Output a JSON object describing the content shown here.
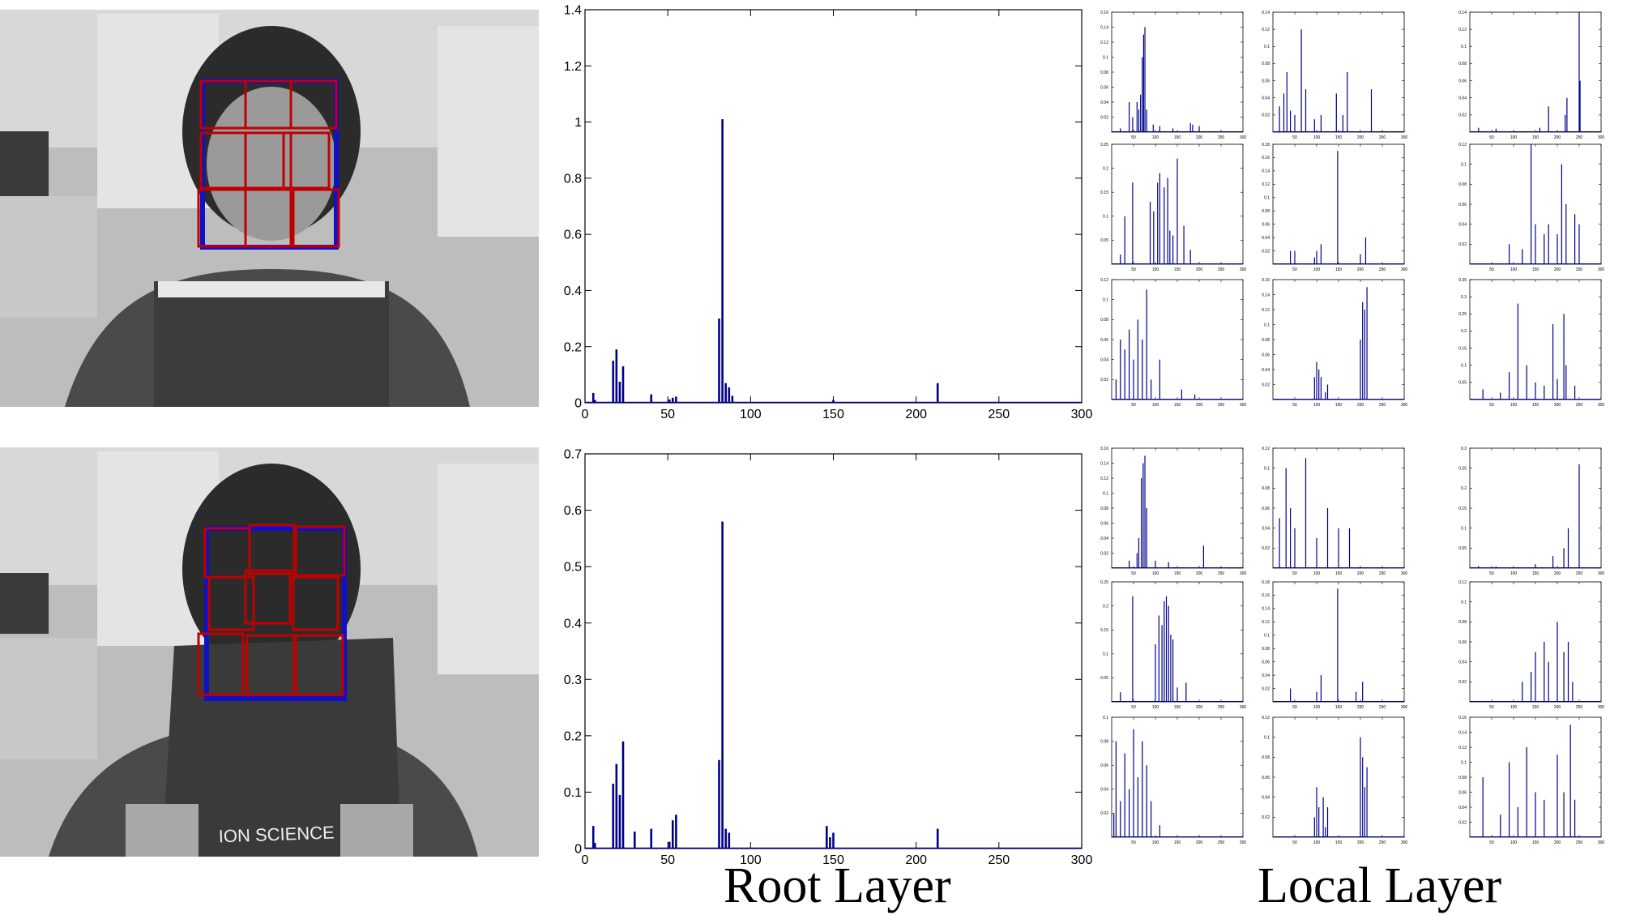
{
  "captions": {
    "root": "Root Layer",
    "local": "Local Layer"
  },
  "photos": [
    {
      "book_text": ""
    },
    {
      "book_text": "ION SCIENCE"
    }
  ],
  "colors": {
    "bar": "#00008b",
    "root_box": "#1010c8",
    "part_box": "#c00000"
  },
  "chart_data": [
    {
      "type": "bar",
      "xlim": [
        0,
        300
      ],
      "ylim": [
        0,
        1.4
      ],
      "xticks": [
        0,
        50,
        100,
        150,
        200,
        250,
        300
      ],
      "yticks": [
        0,
        0.2,
        0.4,
        0.6,
        0.8,
        1,
        1.2,
        1.4
      ],
      "xtick_labels": [
        "0",
        "50",
        "100",
        "150",
        "200",
        "250",
        "300"
      ],
      "ytick_labels": [
        "0",
        "0.2",
        "0.4",
        "0.6",
        "0.8",
        "1",
        "1.2",
        "1.4"
      ],
      "x": [
        5,
        6,
        17,
        19,
        21,
        23,
        40,
        51,
        53,
        55,
        81,
        83,
        85,
        87,
        89,
        150,
        213
      ],
      "values": [
        0.035,
        0.01,
        0.15,
        0.19,
        0.075,
        0.13,
        0.03,
        0.012,
        0.018,
        0.022,
        0.3,
        1.01,
        0.07,
        0.055,
        0.025,
        0.01,
        0.07
      ]
    },
    {
      "type": "bar",
      "xlim": [
        0,
        300
      ],
      "ylim": [
        0,
        0.7
      ],
      "xticks": [
        0,
        50,
        100,
        150,
        200,
        250,
        300
      ],
      "yticks": [
        0,
        0.1,
        0.2,
        0.3,
        0.4,
        0.5,
        0.6,
        0.7
      ],
      "xtick_labels": [
        "0",
        "50",
        "100",
        "150",
        "200",
        "250",
        "300"
      ],
      "ytick_labels": [
        "0",
        "0.1",
        "0.2",
        "0.3",
        "0.4",
        "0.5",
        "0.6",
        "0.7"
      ],
      "x": [
        5,
        6,
        17,
        19,
        21,
        23,
        30,
        40,
        51,
        53,
        55,
        81,
        83,
        85,
        87,
        146,
        148,
        150,
        213
      ],
      "values": [
        0.04,
        0.01,
        0.115,
        0.15,
        0.095,
        0.19,
        0.03,
        0.035,
        0.012,
        0.05,
        0.06,
        0.157,
        0.58,
        0.035,
        0.028,
        0.04,
        0.02,
        0.028,
        0.035
      ]
    },
    {
      "type": "bar",
      "xlim": [
        0,
        300
      ],
      "ylim": [
        0,
        0.16
      ],
      "yticks": [
        0.02,
        0.04,
        0.06,
        0.08,
        0.1,
        0.12,
        0.14,
        0.16
      ],
      "xticks": [
        50,
        100,
        150,
        200,
        250,
        300
      ],
      "x": [
        20,
        40,
        48,
        58,
        62,
        66,
        70,
        73,
        76,
        80,
        95,
        110,
        140,
        180,
        185,
        200
      ],
      "values": [
        0.005,
        0.04,
        0.02,
        0.04,
        0.03,
        0.05,
        0.1,
        0.13,
        0.14,
        0.03,
        0.01,
        0.008,
        0.005,
        0.012,
        0.01,
        0.008
      ]
    },
    {
      "type": "bar",
      "xlim": [
        0,
        300
      ],
      "ylim": [
        0,
        0.14
      ],
      "yticks": [
        0.02,
        0.04,
        0.06,
        0.08,
        0.1,
        0.12,
        0.14
      ],
      "xticks": [
        50,
        100,
        150,
        200,
        250,
        300
      ],
      "x": [
        15,
        25,
        32,
        40,
        50,
        65,
        75,
        95,
        110,
        145,
        160,
        170,
        225
      ],
      "values": [
        0.03,
        0.045,
        0.07,
        0.025,
        0.02,
        0.12,
        0.05,
        0.015,
        0.02,
        0.045,
        0.02,
        0.07,
        0.05
      ]
    },
    {
      "type": "bar",
      "xlim": [
        0,
        300
      ],
      "ylim": [
        0,
        0.14
      ],
      "yticks": [
        0.02,
        0.04,
        0.06,
        0.08,
        0.1,
        0.12,
        0.14
      ],
      "xticks": [
        50,
        100,
        150,
        200,
        250,
        300
      ],
      "x": [
        20,
        60,
        160,
        180,
        218,
        222,
        250,
        252
      ],
      "values": [
        0.005,
        0.004,
        0.005,
        0.03,
        0.02,
        0.04,
        0.14,
        0.06
      ]
    },
    {
      "type": "bar",
      "xlim": [
        0,
        300
      ],
      "ylim": [
        0,
        0.25
      ],
      "yticks": [
        0.05,
        0.1,
        0.15,
        0.2,
        0.25
      ],
      "xticks": [
        50,
        100,
        150,
        200,
        250,
        300
      ],
      "x": [
        20,
        30,
        48,
        88,
        96,
        105,
        110,
        120,
        128,
        133,
        140,
        150,
        165,
        180
      ],
      "values": [
        0.02,
        0.1,
        0.17,
        0.13,
        0.11,
        0.17,
        0.19,
        0.16,
        0.18,
        0.07,
        0.06,
        0.22,
        0.08,
        0.03
      ]
    },
    {
      "type": "bar",
      "xlim": [
        0,
        300
      ],
      "ylim": [
        0,
        0.18
      ],
      "yticks": [
        0.02,
        0.04,
        0.06,
        0.08,
        0.1,
        0.12,
        0.14,
        0.16,
        0.18
      ],
      "xticks": [
        50,
        100,
        150,
        200,
        250,
        300
      ],
      "x": [
        40,
        50,
        95,
        100,
        110,
        148,
        200,
        212
      ],
      "values": [
        0.02,
        0.02,
        0.01,
        0.02,
        0.03,
        0.17,
        0.015,
        0.04
      ]
    },
    {
      "type": "bar",
      "xlim": [
        0,
        300
      ],
      "ylim": [
        0,
        0.12
      ],
      "yticks": [
        0.02,
        0.04,
        0.06,
        0.08,
        0.1,
        0.12
      ],
      "xticks": [
        50,
        100,
        150,
        200,
        250,
        300
      ],
      "x": [
        90,
        120,
        140,
        150,
        170,
        180,
        200,
        210,
        220,
        240,
        250
      ],
      "values": [
        0.02,
        0.015,
        0.12,
        0.04,
        0.03,
        0.04,
        0.03,
        0.1,
        0.06,
        0.05,
        0.04
      ]
    },
    {
      "type": "bar",
      "xlim": [
        0,
        300
      ],
      "ylim": [
        0,
        0.12
      ],
      "yticks": [
        0.02,
        0.04,
        0.06,
        0.08,
        0.1,
        0.12
      ],
      "xticks": [
        50,
        100,
        150,
        200,
        250,
        300
      ],
      "x": [
        10,
        20,
        30,
        40,
        50,
        60,
        70,
        80,
        90,
        110,
        160,
        190
      ],
      "values": [
        0.02,
        0.06,
        0.05,
        0.07,
        0.04,
        0.08,
        0.06,
        0.11,
        0.02,
        0.04,
        0.01,
        0.005
      ]
    },
    {
      "type": "bar",
      "xlim": [
        0,
        300
      ],
      "ylim": [
        0,
        0.16
      ],
      "yticks": [
        0.02,
        0.04,
        0.06,
        0.08,
        0.1,
        0.12,
        0.14,
        0.16
      ],
      "xticks": [
        50,
        100,
        150,
        200,
        250,
        300
      ],
      "x": [
        95,
        100,
        105,
        110,
        120,
        125,
        200,
        205,
        210,
        215
      ],
      "values": [
        0.03,
        0.05,
        0.04,
        0.03,
        0.01,
        0.02,
        0.08,
        0.13,
        0.12,
        0.15
      ]
    },
    {
      "type": "bar",
      "xlim": [
        0,
        300
      ],
      "ylim": [
        0,
        0.35
      ],
      "yticks": [
        0.05,
        0.1,
        0.15,
        0.2,
        0.25,
        0.3,
        0.35
      ],
      "xticks": [
        50,
        100,
        150,
        200,
        250,
        300
      ],
      "x": [
        30,
        70,
        90,
        110,
        130,
        150,
        170,
        190,
        200,
        215,
        220,
        240
      ],
      "values": [
        0.03,
        0.02,
        0.08,
        0.28,
        0.1,
        0.05,
        0.04,
        0.22,
        0.06,
        0.25,
        0.1,
        0.04
      ]
    },
    {
      "type": "bar",
      "xlim": [
        0,
        300
      ],
      "ylim": [
        0,
        0.16
      ],
      "yticks": [
        0.02,
        0.04,
        0.06,
        0.08,
        0.1,
        0.12,
        0.14,
        0.16
      ],
      "xticks": [
        50,
        100,
        150,
        200,
        250,
        300
      ],
      "x": [
        40,
        58,
        62,
        68,
        72,
        76,
        80,
        100,
        130,
        210
      ],
      "values": [
        0.01,
        0.02,
        0.04,
        0.12,
        0.14,
        0.15,
        0.08,
        0.01,
        0.008,
        0.03
      ]
    },
    {
      "type": "bar",
      "xlim": [
        0,
        300
      ],
      "ylim": [
        0,
        0.12
      ],
      "yticks": [
        0.02,
        0.04,
        0.06,
        0.08,
        0.1,
        0.12
      ],
      "xticks": [
        50,
        100,
        150,
        200,
        250,
        300
      ],
      "x": [
        15,
        30,
        40,
        50,
        75,
        100,
        125,
        150,
        175
      ],
      "values": [
        0.05,
        0.1,
        0.06,
        0.04,
        0.11,
        0.03,
        0.06,
        0.04,
        0.04
      ]
    },
    {
      "type": "bar",
      "xlim": [
        0,
        300
      ],
      "ylim": [
        0,
        0.3
      ],
      "yticks": [
        0.05,
        0.1,
        0.15,
        0.2,
        0.25,
        0.3
      ],
      "xticks": [
        50,
        100,
        150,
        200,
        250,
        300
      ],
      "x": [
        20,
        60,
        150,
        190,
        215,
        225,
        250
      ],
      "values": [
        0.005,
        0.004,
        0.01,
        0.03,
        0.05,
        0.1,
        0.26
      ]
    },
    {
      "type": "bar",
      "xlim": [
        0,
        300
      ],
      "ylim": [
        0,
        0.25
      ],
      "yticks": [
        0.05,
        0.1,
        0.15,
        0.2,
        0.25
      ],
      "xticks": [
        50,
        100,
        150,
        200,
        250,
        300
      ],
      "x": [
        20,
        48,
        100,
        108,
        115,
        120,
        125,
        130,
        135,
        140,
        150,
        170
      ],
      "values": [
        0.02,
        0.22,
        0.12,
        0.18,
        0.16,
        0.21,
        0.22,
        0.2,
        0.14,
        0.13,
        0.03,
        0.04
      ]
    },
    {
      "type": "bar",
      "xlim": [
        0,
        300
      ],
      "ylim": [
        0,
        0.18
      ],
      "yticks": [
        0.02,
        0.04,
        0.06,
        0.08,
        0.1,
        0.12,
        0.14,
        0.16,
        0.18
      ],
      "xticks": [
        50,
        100,
        150,
        200,
        250,
        300
      ],
      "x": [
        40,
        100,
        110,
        148,
        190,
        205
      ],
      "values": [
        0.02,
        0.015,
        0.04,
        0.17,
        0.015,
        0.03
      ]
    },
    {
      "type": "bar",
      "xlim": [
        0,
        300
      ],
      "ylim": [
        0,
        0.12
      ],
      "yticks": [
        0.02,
        0.04,
        0.06,
        0.08,
        0.1,
        0.12
      ],
      "xticks": [
        50,
        100,
        150,
        200,
        250,
        300
      ],
      "x": [
        120,
        140,
        150,
        170,
        180,
        200,
        215,
        225,
        235
      ],
      "values": [
        0.02,
        0.03,
        0.05,
        0.06,
        0.04,
        0.08,
        0.05,
        0.06,
        0.02
      ]
    },
    {
      "type": "bar",
      "xlim": [
        0,
        300
      ],
      "ylim": [
        0,
        0.1
      ],
      "yticks": [
        0.02,
        0.04,
        0.06,
        0.08,
        0.1
      ],
      "xticks": [
        50,
        100,
        150,
        200,
        250,
        300
      ],
      "x": [
        5,
        10,
        20,
        30,
        40,
        50,
        60,
        70,
        80,
        90,
        110
      ],
      "values": [
        0.02,
        0.08,
        0.03,
        0.07,
        0.04,
        0.09,
        0.05,
        0.08,
        0.06,
        0.03,
        0.01
      ]
    },
    {
      "type": "bar",
      "xlim": [
        0,
        300
      ],
      "ylim": [
        0,
        0.12
      ],
      "yticks": [
        0.02,
        0.04,
        0.06,
        0.08,
        0.1,
        0.12
      ],
      "xticks": [
        50,
        100,
        150,
        200,
        250,
        300
      ],
      "x": [
        95,
        100,
        105,
        115,
        120,
        125,
        200,
        205,
        210,
        215
      ],
      "values": [
        0.02,
        0.05,
        0.03,
        0.04,
        0.01,
        0.03,
        0.1,
        0.08,
        0.05,
        0.07
      ]
    },
    {
      "type": "bar",
      "xlim": [
        0,
        300
      ],
      "ylim": [
        0,
        0.16
      ],
      "yticks": [
        0.02,
        0.04,
        0.06,
        0.08,
        0.1,
        0.12,
        0.14,
        0.16
      ],
      "xticks": [
        50,
        100,
        150,
        200,
        250,
        300
      ],
      "x": [
        30,
        70,
        90,
        110,
        130,
        150,
        170,
        200,
        215,
        230,
        240
      ],
      "values": [
        0.08,
        0.03,
        0.1,
        0.04,
        0.12,
        0.06,
        0.05,
        0.11,
        0.06,
        0.15,
        0.05
      ]
    }
  ]
}
